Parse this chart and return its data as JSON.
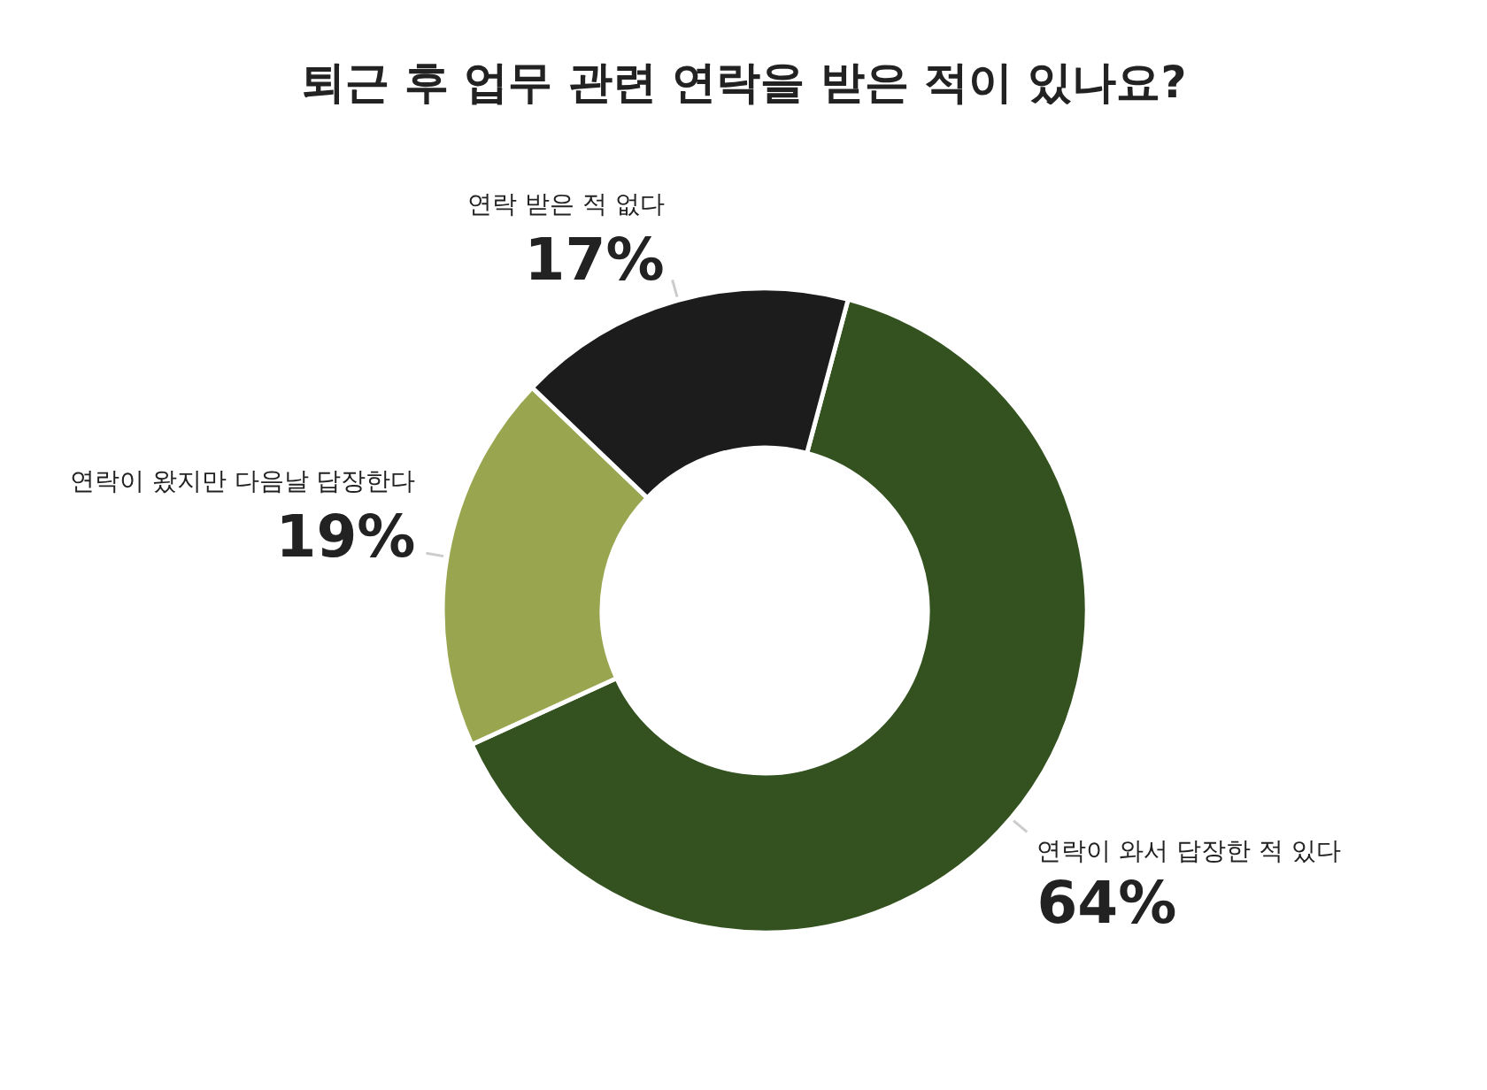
{
  "chart_data": {
    "type": "donut",
    "title": "퇴근 후 업무 관련 연락을 받은 적이 있나요?",
    "categories": [
      "연락이 와서 답장한 적 있다",
      "연락이 왔지만 다음날 답장한다",
      "연락 받은 적 없다"
    ],
    "values": [
      64,
      19,
      17
    ],
    "value_labels": [
      "64%",
      "19%",
      "17%"
    ],
    "colors": [
      "#33521f",
      "#9aa64f",
      "#1c1c1c"
    ]
  }
}
